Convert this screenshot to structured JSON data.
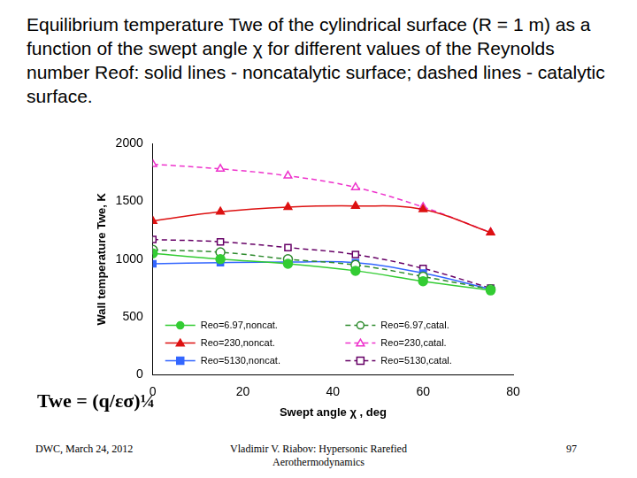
{
  "heading": "Equilibrium temperature Twe of the cylindrical surface (R = 1 m) as a function of the swept angle χ for different values of the Reynolds number Reof: solid lines - noncatalytic surface; dashed lines - catalytic surface.",
  "formula": "Twe = (q/εσ)¼",
  "footer": {
    "left": "DWC, March 24, 2012",
    "center": "Vladimir V. Riabov: Hypersonic Rarefied Aerothermodynamics",
    "right": "97"
  },
  "chart_data": {
    "type": "line",
    "x_label": "Swept angle χ , deg",
    "y_label": "Wall temperature Twe, K",
    "x": [
      0,
      15,
      30,
      45,
      60,
      75
    ],
    "xlim": [
      0,
      80
    ],
    "xticks": [
      0,
      20,
      40,
      60,
      80
    ],
    "ylim": [
      0,
      2000
    ],
    "yticks": [
      0,
      500,
      1000,
      1500,
      2000
    ],
    "grid": false,
    "legend": "bottom",
    "series": [
      {
        "name": "Reo=6.97,noncat.",
        "color": "#33cc33",
        "marker": "circle",
        "line_style": "solid",
        "values": [
          1050,
          1000,
          960,
          900,
          810,
          730
        ]
      },
      {
        "name": "Reo=6.97,catal.",
        "color": "#2e8b2e",
        "marker": "open circle",
        "line_style": "dashed",
        "values": [
          1080,
          1060,
          1000,
          950,
          850,
          740
        ]
      },
      {
        "name": "Reo=230,noncat.",
        "color": "#dd1111",
        "marker": "triangle",
        "line_style": "solid",
        "values": [
          1330,
          1410,
          1450,
          1460,
          1430,
          1230
        ]
      },
      {
        "name": "Reo=230,catal.",
        "color": "#ee33cc",
        "marker": "open triangle",
        "line_style": "dashed",
        "values": [
          1820,
          1780,
          1720,
          1620,
          1450,
          1230
        ]
      },
      {
        "name": "Reo=5130,noncat.",
        "color": "#3366ff",
        "marker": "square",
        "line_style": "solid",
        "values": [
          960,
          970,
          975,
          970,
          880,
          740
        ]
      },
      {
        "name": "Reo=5130,catal.",
        "color": "#660066",
        "marker": "open square",
        "line_style": "dashed",
        "values": [
          1170,
          1150,
          1100,
          1040,
          920,
          750
        ]
      }
    ]
  }
}
